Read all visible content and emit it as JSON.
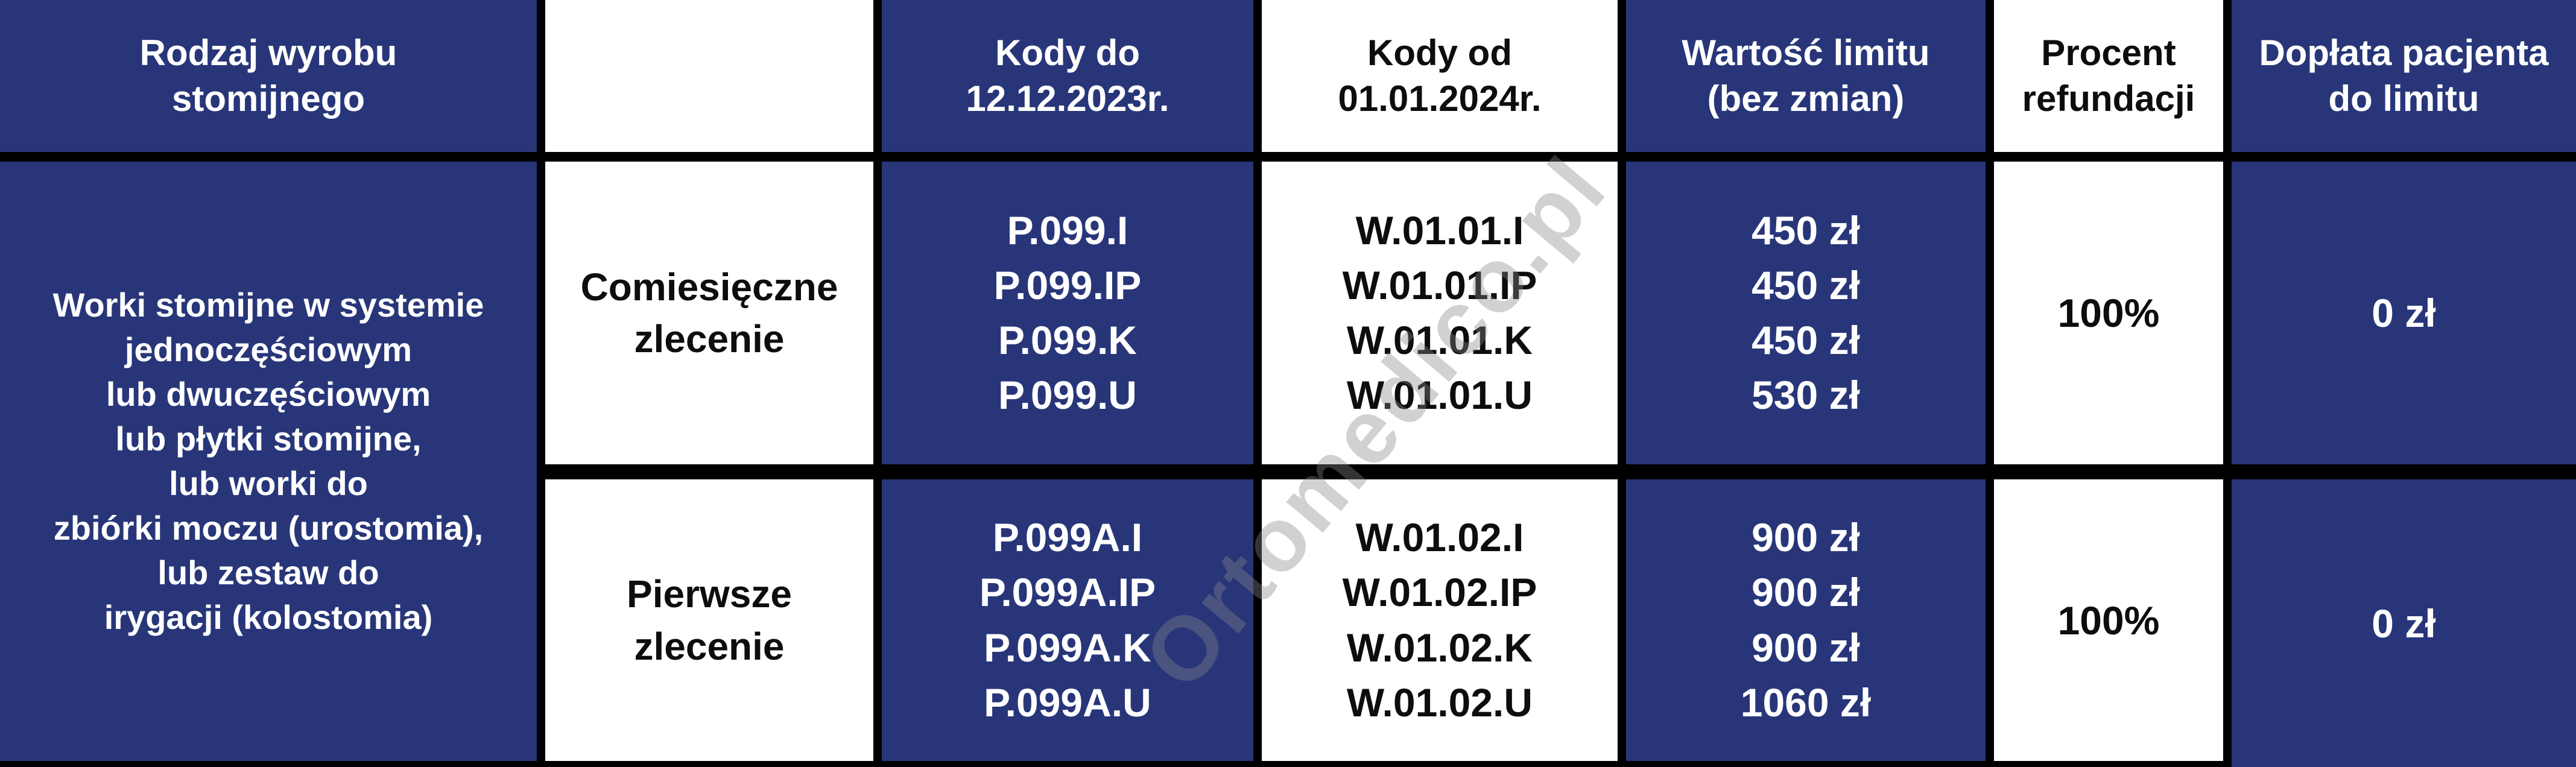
{
  "colors": {
    "navy": "#283679",
    "white": "#ffffff",
    "grid_black": "#000000",
    "watermark_gray": "#878787"
  },
  "watermark": {
    "text": "Ortomedico.pl"
  },
  "header": {
    "col1": "Rodzaj wyrobu\nstomijnego",
    "col2": "",
    "col3": "Kody do\n12.12.2023r.",
    "col4": "Kody od\n01.01.2024r.",
    "col5": "Wartość limitu\n(bez zmian)",
    "col6": "Procent\nrefundacji",
    "col7": "Dopłata pacjenta\ndo limitu"
  },
  "product_cell": "Worki stomijne w systemie\njednoczęściowym\nlub dwuczęściowym\nlub płytki stomijne,\nlub worki do\nzbiórki moczu (urostomia),\nlub zestaw do\nirygacji (kolostomia)",
  "rows": [
    {
      "order_type": "Comiesięczne\nzlecenie",
      "codes_old": "P.099.I\nP.099.IP\nP.099.K\nP.099.U",
      "codes_new": "W.01.01.I\nW.01.01.IP\nW.01.01.K\nW.01.01.U",
      "limit_values": "450 zł\n450 zł\n450 zł\n530 zł",
      "refund_percent": "100%",
      "patient_copay": "0 zł"
    },
    {
      "order_type": "Pierwsze\nzlecenie",
      "codes_old": "P.099A.I\nP.099A.IP\nP.099A.K\nP.099A.U",
      "codes_new": "W.01.02.I\nW.01.02.IP\nW.01.02.K\nW.01.02.U",
      "limit_values": "900 zł\n900 zł\n900 zł\n1060 zł",
      "refund_percent": "100%",
      "patient_copay": "0 zł"
    }
  ],
  "chart_data": {
    "type": "table",
    "title": "",
    "columns": [
      "Rodzaj wyrobu stomijnego",
      "",
      "Kody do 12.12.2023r.",
      "Kody od 01.01.2024r.",
      "Wartość limitu (bez zmian)",
      "Procent refundacji",
      "Dopłata pacjenta do limitu"
    ],
    "rows": [
      [
        "Worki stomijne w systemie jednoczęściowym lub dwuczęściowym lub płytki stomijne, lub worki do zbiórki moczu (urostomia), lub zestaw do irygacji (kolostomia)",
        "Comiesięczne zlecenie",
        "P.099.I; P.099.IP; P.099.K; P.099.U",
        "W.01.01.I; W.01.01.IP; W.01.01.K; W.01.01.U",
        "450 zł; 450 zł; 450 zł; 530 zł",
        "100%",
        "0 zł"
      ],
      [
        "",
        "Pierwsze zlecenie",
        "P.099A.I; P.099A.IP; P.099A.K; P.099A.U",
        "W.01.02.I; W.01.02.IP; W.01.02.K; W.01.02.U",
        "900 zł; 900 zł; 900 zł; 1060 zł",
        "100%",
        "0 zł"
      ]
    ],
    "merges": [
      {
        "note": "column 1 product cell spans both body rows"
      }
    ],
    "layout": {
      "grid": true,
      "header_row": true
    }
  }
}
